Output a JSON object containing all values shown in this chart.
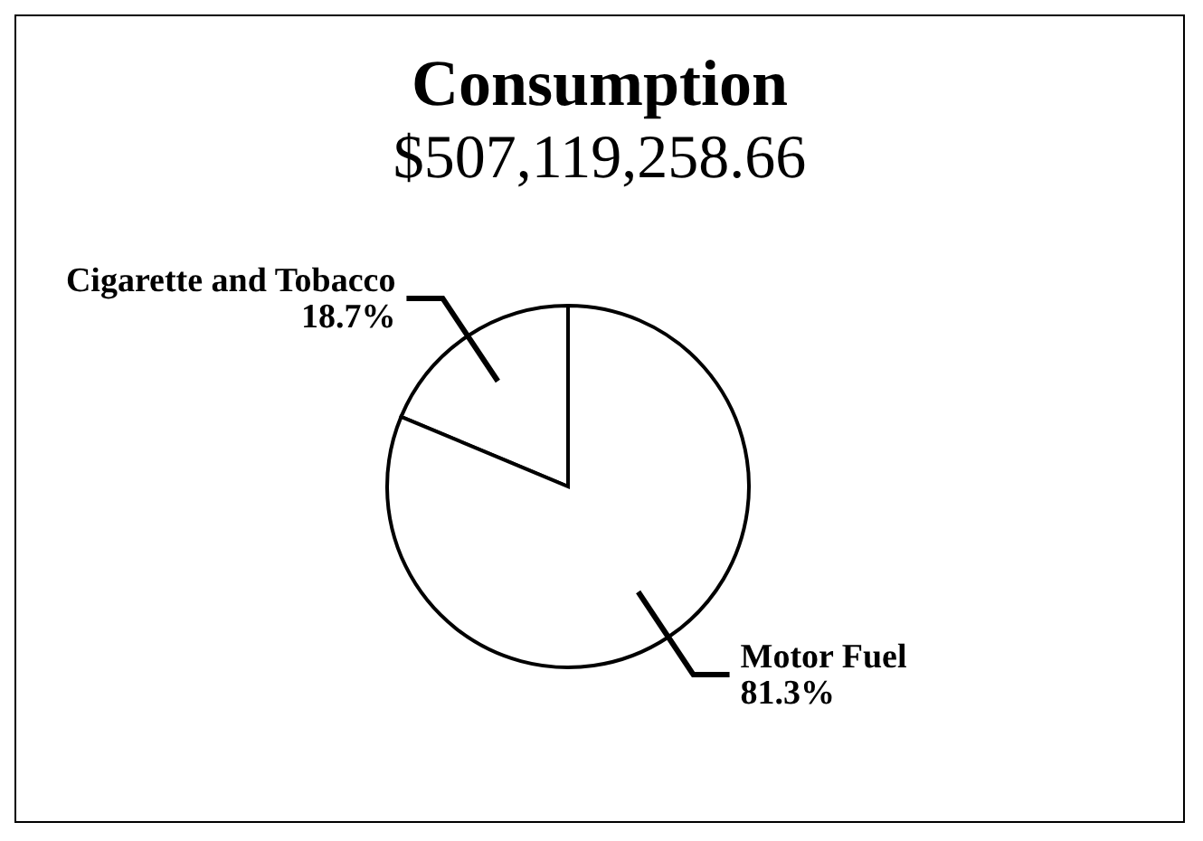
{
  "chart_data": {
    "type": "pie",
    "title": "Consumption",
    "subtitle": "$507,119,258.66",
    "categories": [
      "Cigarette and Tobacco",
      "Motor Fuel"
    ],
    "values": [
      18.7,
      81.3
    ],
    "value_labels": [
      "18.7%",
      "81.3%"
    ],
    "colors": [
      "#ffffff",
      "#ffffff"
    ]
  }
}
